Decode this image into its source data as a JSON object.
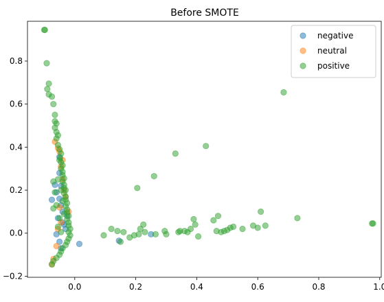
{
  "chart_data": {
    "type": "scatter",
    "title": "Before SMOTE",
    "xlabel": "",
    "ylabel": "",
    "xlim": [
      -0.155,
      1.005
    ],
    "ylim": [
      -0.205,
      0.985
    ],
    "xticks": [
      0.0,
      0.2,
      0.4,
      0.6,
      0.8,
      1.0
    ],
    "xtick_labels": [
      "0.0",
      "0.2",
      "0.4",
      "0.6",
      "0.8",
      "1.0"
    ],
    "yticks": [
      -0.2,
      0.0,
      0.2,
      0.4,
      0.6,
      0.8
    ],
    "ytick_labels": [
      "−0.2",
      "0.0",
      "0.2",
      "0.4",
      "0.6",
      "0.8"
    ],
    "grid": false,
    "legend_position": "top-right",
    "series": [
      {
        "name": "negative",
        "color": "#1f77b4",
        "points": [
          [
            -0.05,
            0.355
          ],
          [
            -0.065,
            0.225
          ],
          [
            -0.075,
            0.155
          ],
          [
            -0.06,
            0.19
          ],
          [
            -0.05,
            0.16
          ],
          [
            -0.045,
            0.13
          ],
          [
            -0.04,
            0.1
          ],
          [
            -0.055,
            0.07
          ],
          [
            -0.06,
            -0.005
          ],
          [
            -0.05,
            -0.04
          ],
          [
            -0.03,
            0.02
          ],
          [
            -0.04,
            0.05
          ],
          [
            0.015,
            -0.05
          ],
          [
            0.145,
            -0.035
          ],
          [
            0.25,
            -0.005
          ],
          [
            -0.045,
            -0.07
          ],
          [
            -0.035,
            0.04
          ],
          [
            -0.025,
            0.08
          ],
          [
            -0.05,
            0.28
          ],
          [
            -0.045,
            0.22
          ]
        ]
      },
      {
        "name": "neutral",
        "color": "#ff7f0e",
        "points": [
          [
            -0.065,
            0.425
          ],
          [
            -0.055,
            0.395
          ],
          [
            -0.05,
            0.38
          ],
          [
            -0.045,
            0.31
          ],
          [
            -0.04,
            0.25
          ],
          [
            -0.035,
            0.2
          ],
          [
            -0.05,
            0.12
          ],
          [
            -0.045,
            0.05
          ],
          [
            -0.06,
            -0.06
          ],
          [
            -0.075,
            -0.145
          ],
          [
            -0.07,
            -0.12
          ],
          [
            -0.03,
            0.17
          ],
          [
            -0.02,
            0.1
          ],
          [
            -0.04,
            0.34
          ],
          [
            -0.055,
            0.02
          ]
        ]
      },
      {
        "name": "positive",
        "color": "#2ca02c",
        "points": [
          [
            -0.1,
            0.945
          ],
          [
            -0.098,
            0.945
          ],
          [
            -0.092,
            0.79
          ],
          [
            -0.085,
            0.695
          ],
          [
            -0.09,
            0.67
          ],
          [
            -0.085,
            0.645
          ],
          [
            -0.075,
            0.635
          ],
          [
            -0.07,
            0.6
          ],
          [
            -0.065,
            0.55
          ],
          [
            -0.065,
            0.52
          ],
          [
            -0.06,
            0.51
          ],
          [
            -0.065,
            0.49
          ],
          [
            -0.06,
            0.47
          ],
          [
            -0.055,
            0.455
          ],
          [
            -0.06,
            0.44
          ],
          [
            -0.055,
            0.41
          ],
          [
            -0.05,
            0.39
          ],
          [
            -0.045,
            0.37
          ],
          [
            -0.048,
            0.35
          ],
          [
            -0.045,
            0.33
          ],
          [
            -0.04,
            0.315
          ],
          [
            -0.045,
            0.3
          ],
          [
            -0.04,
            0.285
          ],
          [
            -0.04,
            0.27
          ],
          [
            -0.035,
            0.255
          ],
          [
            -0.04,
            0.24
          ],
          [
            -0.035,
            0.225
          ],
          [
            -0.035,
            0.21
          ],
          [
            -0.03,
            0.2
          ],
          [
            -0.035,
            0.185
          ],
          [
            -0.03,
            0.17
          ],
          [
            -0.03,
            0.155
          ],
          [
            -0.025,
            0.14
          ],
          [
            -0.03,
            0.125
          ],
          [
            -0.025,
            0.11
          ],
          [
            -0.025,
            0.095
          ],
          [
            -0.02,
            0.08
          ],
          [
            -0.025,
            0.065
          ],
          [
            -0.02,
            0.05
          ],
          [
            -0.02,
            0.035
          ],
          [
            -0.015,
            0.02
          ],
          [
            -0.02,
            0.005
          ],
          [
            -0.015,
            -0.01
          ],
          [
            -0.02,
            -0.025
          ],
          [
            -0.025,
            -0.04
          ],
          [
            -0.03,
            -0.055
          ],
          [
            -0.04,
            -0.07
          ],
          [
            -0.045,
            -0.085
          ],
          [
            -0.05,
            -0.1
          ],
          [
            -0.06,
            -0.115
          ],
          [
            -0.07,
            -0.13
          ],
          [
            -0.075,
            -0.145
          ],
          [
            -0.07,
            0.24
          ],
          [
            -0.065,
            0.19
          ],
          [
            -0.07,
            0.115
          ],
          [
            -0.06,
            0.13
          ],
          [
            -0.05,
            0.07
          ],
          [
            -0.055,
            0.03
          ],
          [
            -0.045,
            0.005
          ],
          [
            -0.035,
            0.09
          ],
          [
            -0.045,
            0.2
          ],
          [
            -0.04,
            0.15
          ],
          [
            -0.055,
            0.25
          ],
          [
            -0.05,
            0.34
          ],
          [
            0.095,
            -0.01
          ],
          [
            0.12,
            0.02
          ],
          [
            0.14,
            0.01
          ],
          [
            0.15,
            -0.04
          ],
          [
            0.16,
            0.005
          ],
          [
            0.18,
            -0.02
          ],
          [
            0.195,
            -0.01
          ],
          [
            0.205,
            0.21
          ],
          [
            0.21,
            -0.005
          ],
          [
            0.215,
            0.02
          ],
          [
            0.225,
            0.04
          ],
          [
            0.23,
            0.005
          ],
          [
            0.26,
            0.265
          ],
          [
            0.265,
            -0.005
          ],
          [
            0.295,
            0.01
          ],
          [
            0.3,
            -0.005
          ],
          [
            0.33,
            0.37
          ],
          [
            0.34,
            0.005
          ],
          [
            0.345,
            0.01
          ],
          [
            0.36,
            0.01
          ],
          [
            0.37,
            0.005
          ],
          [
            0.38,
            0.02
          ],
          [
            0.39,
            0.065
          ],
          [
            0.395,
            0.04
          ],
          [
            0.405,
            -0.015
          ],
          [
            0.43,
            0.405
          ],
          [
            0.455,
            0.06
          ],
          [
            0.465,
            0.01
          ],
          [
            0.47,
            0.08
          ],
          [
            0.48,
            0.005
          ],
          [
            0.49,
            0.01
          ],
          [
            0.5,
            0.015
          ],
          [
            0.51,
            0.025
          ],
          [
            0.52,
            0.03
          ],
          [
            0.55,
            0.02
          ],
          [
            0.585,
            0.035
          ],
          [
            0.6,
            0.025
          ],
          [
            0.61,
            0.1
          ],
          [
            0.625,
            0.035
          ],
          [
            0.685,
            0.655
          ],
          [
            0.73,
            0.07
          ],
          [
            0.975,
            0.045
          ],
          [
            0.978,
            0.045
          ]
        ]
      }
    ]
  }
}
